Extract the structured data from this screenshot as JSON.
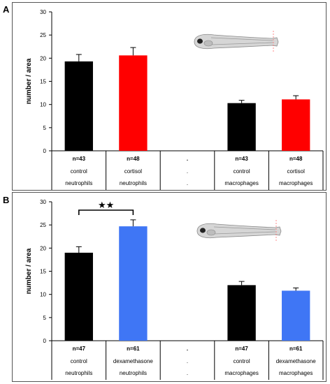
{
  "panels": [
    {
      "letter": "A"
    },
    {
      "letter": "B"
    }
  ],
  "colors": {
    "control": "#000000",
    "cortisol": "#ff0000",
    "dexamethasone": "#3f76f5",
    "zebrafish_body": "#d0d0d0",
    "line": "#000000"
  },
  "chart_data": [
    {
      "type": "bar",
      "ylabel": "number / area",
      "ylim": [
        0,
        30
      ],
      "yticks": [
        0,
        5,
        10,
        15,
        20,
        25,
        30
      ],
      "categories": [
        [
          "n=43",
          "control",
          "neutrophils"
        ],
        [
          "n=48",
          "cortisol",
          "neutrophils"
        ],
        [
          ".",
          ".",
          "."
        ],
        [
          "n=43",
          "control",
          "macrophages"
        ],
        [
          "n=48",
          "cortisol",
          "macrophages"
        ]
      ],
      "values": [
        19.3,
        20.6,
        null,
        10.3,
        11.1
      ],
      "errors": [
        1.5,
        1.7,
        null,
        0.6,
        0.8
      ],
      "bar_colors": [
        "#000000",
        "#ff0000",
        null,
        "#000000",
        "#ff0000"
      ],
      "significance": null
    },
    {
      "type": "bar",
      "ylabel": "number / area",
      "ylim": [
        0,
        30
      ],
      "yticks": [
        0,
        5,
        10,
        15,
        20,
        25,
        30
      ],
      "categories": [
        [
          "n=47",
          "control",
          "neutrophils"
        ],
        [
          "n=61",
          "dexamethasone",
          "neutrophils"
        ],
        [
          ".",
          ".",
          "."
        ],
        [
          "n=47",
          "control",
          "macrophages"
        ],
        [
          "n=61",
          "dexamethasone",
          "macrophages"
        ]
      ],
      "values": [
        19.0,
        24.7,
        null,
        12.0,
        10.8
      ],
      "errors": [
        1.3,
        1.4,
        null,
        0.8,
        0.6
      ],
      "bar_colors": [
        "#000000",
        "#3f76f5",
        null,
        "#000000",
        "#3f76f5"
      ],
      "significance": {
        "between": [
          0,
          1
        ],
        "label": "★★"
      }
    }
  ]
}
